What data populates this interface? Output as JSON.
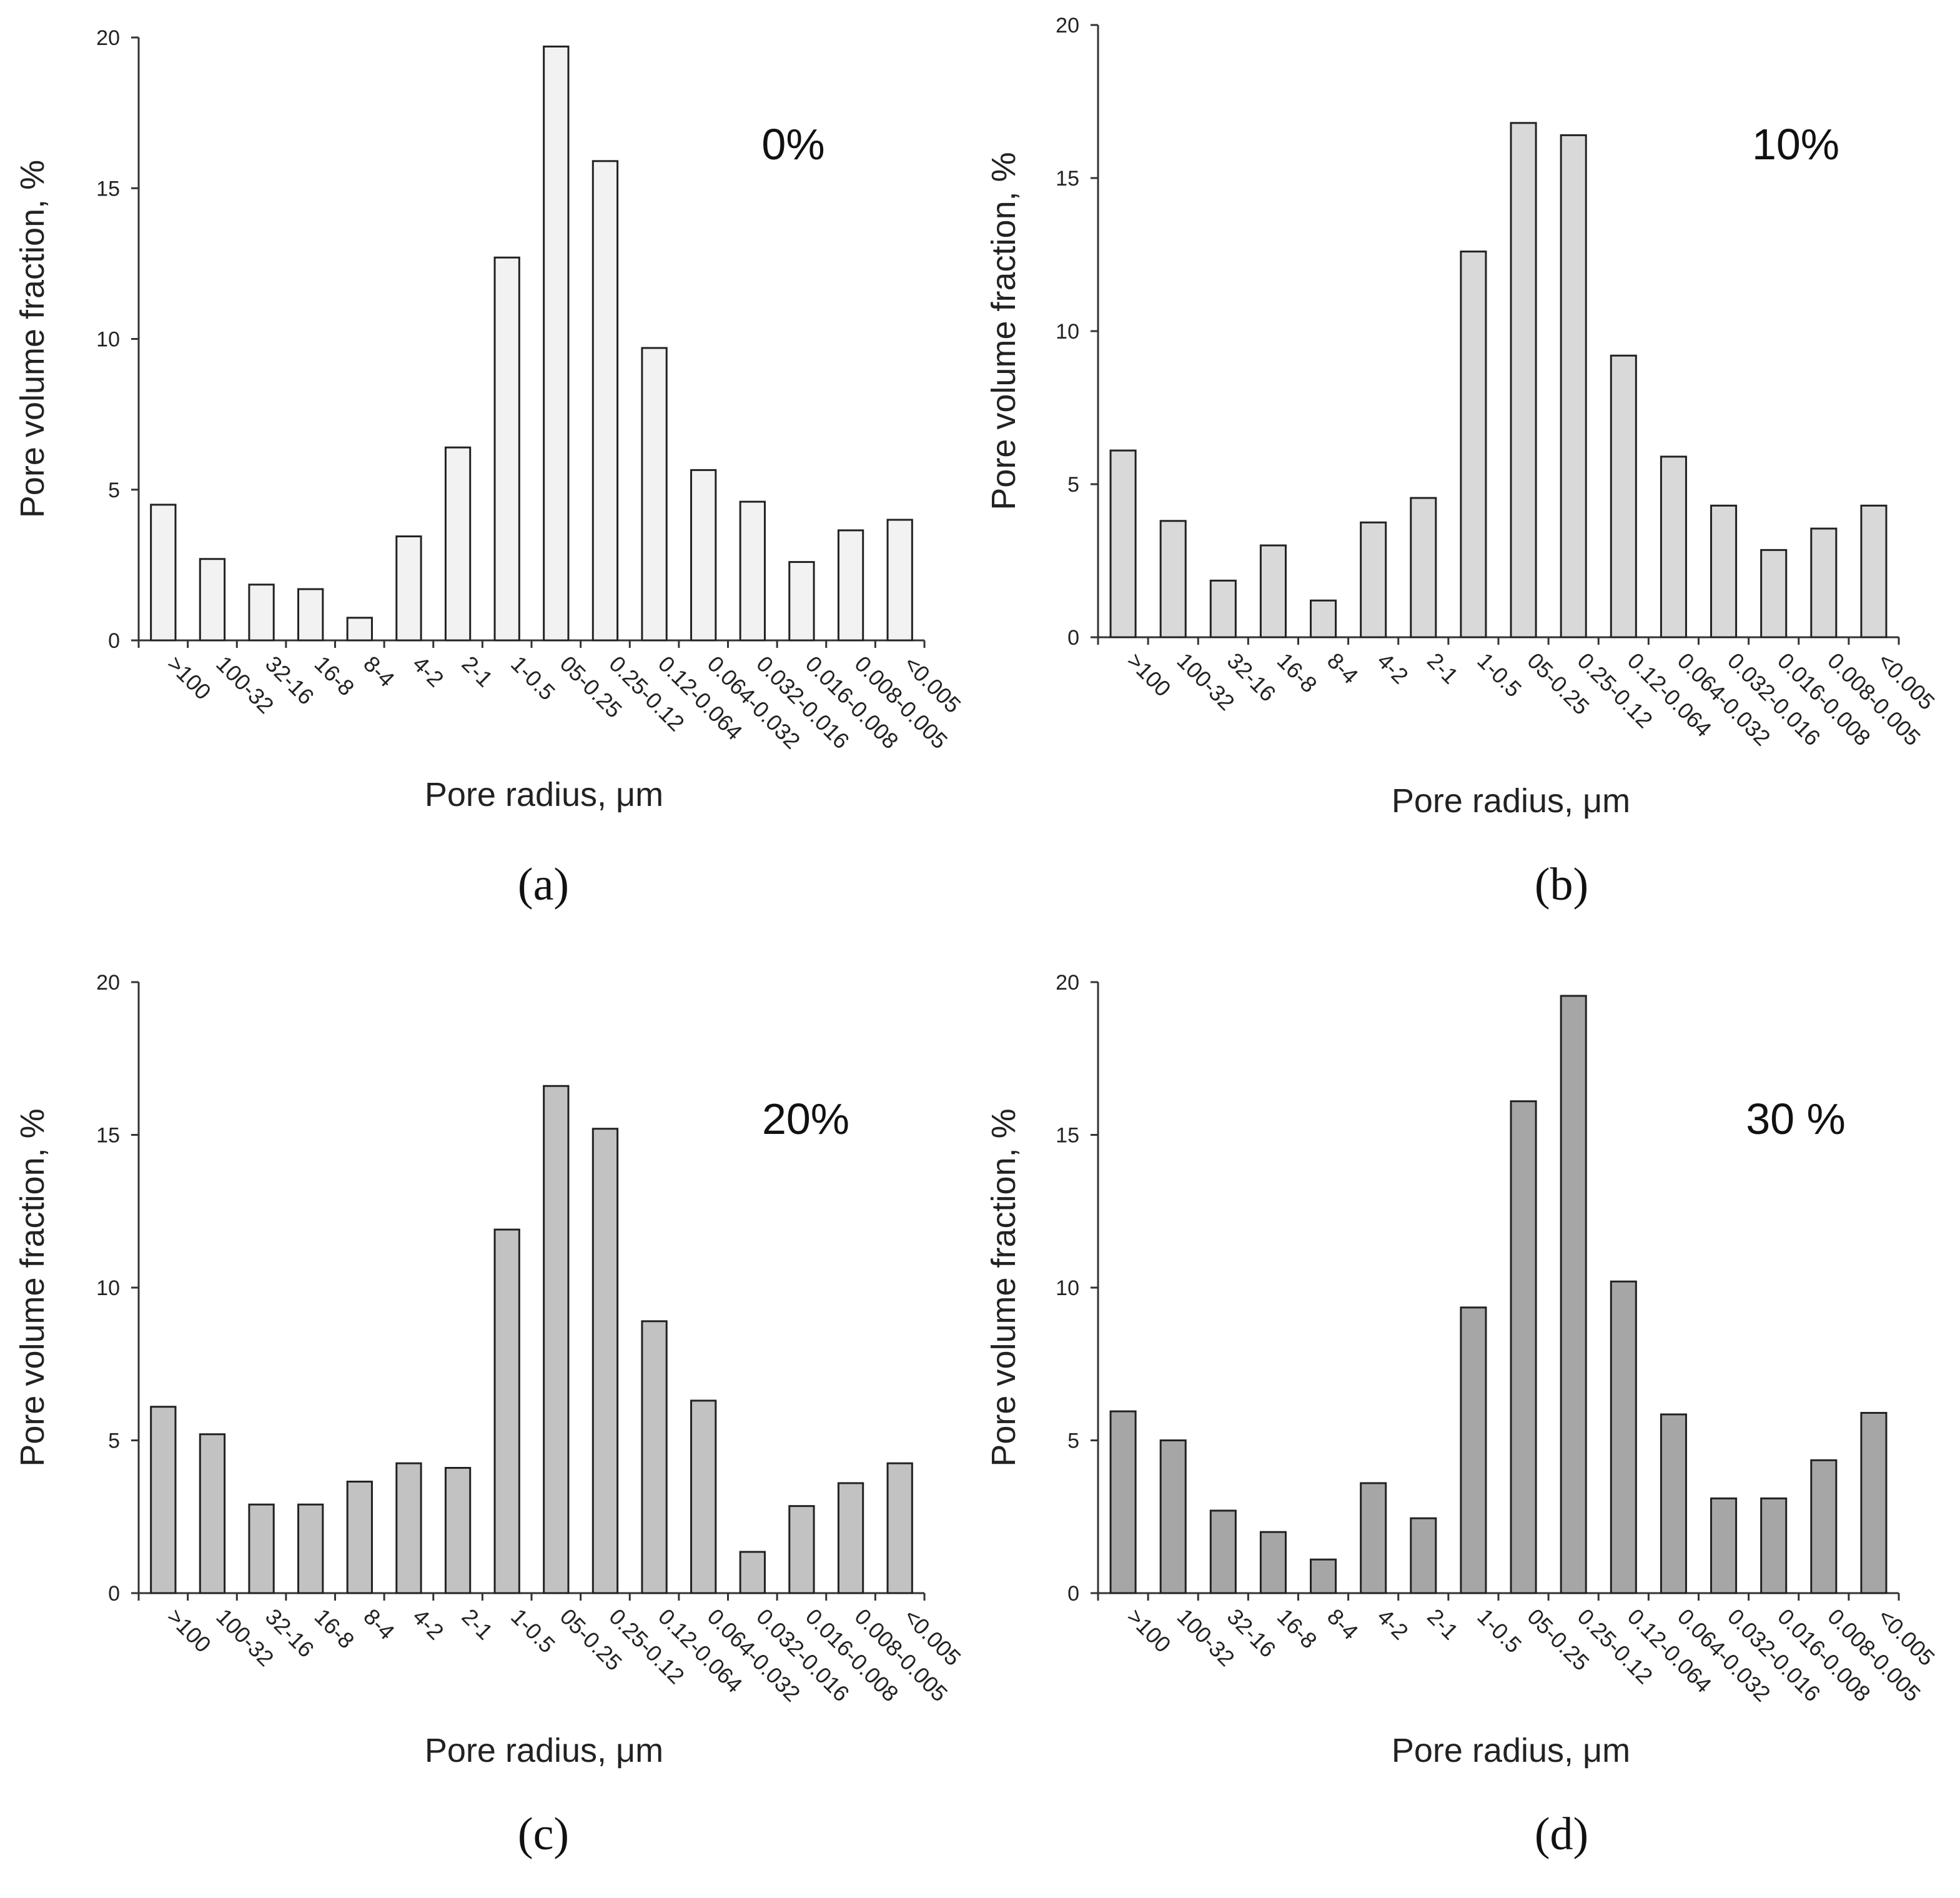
{
  "figure": {
    "colors": {
      "axis": "#333333",
      "text": "#222222",
      "bar_edge": "#222222"
    }
  },
  "chart_data": [
    {
      "type": "bar",
      "panel": "a",
      "caption": "(a)",
      "title": "0%",
      "xlabel": "Pore radius, μm",
      "ylabel": "Pore volume fraction, %",
      "ylim": [
        0,
        20
      ],
      "yticks": [
        "0",
        "5",
        "10",
        "15",
        "20"
      ],
      "bar_color": "#f2f2f2",
      "categories": [
        ">100",
        "100-32",
        "32-16",
        "16-8",
        "8-4",
        "4-2",
        "2-1",
        "1-0.5",
        "05-0.25",
        "0.25-0.12",
        "0.12-0.064",
        "0.064-0.032",
        "0.032-0.016",
        "0.016-0.008",
        "0.008-0.005",
        "<0.005"
      ],
      "values": [
        4.5,
        2.7,
        1.85,
        1.7,
        0.75,
        3.45,
        6.4,
        12.7,
        19.7,
        15.9,
        9.7,
        5.65,
        4.6,
        2.6,
        3.65,
        4.0
      ]
    },
    {
      "type": "bar",
      "panel": "b",
      "caption": "(b)",
      "title": "10%",
      "xlabel": "Pore radius, μm",
      "ylabel": "Pore volume fraction, %",
      "ylim": [
        0,
        20
      ],
      "yticks": [
        "0",
        "5",
        "10",
        "15",
        "20"
      ],
      "bar_color": "#d9d9d9",
      "categories": [
        ">100",
        "100-32",
        "32-16",
        "16-8",
        "8-4",
        "4-2",
        "2-1",
        "1-0.5",
        "05-0.25",
        "0.25-0.12",
        "0.12-0.064",
        "0.064-0.032",
        "0.032-0.016",
        "0.016-0.008",
        "0.008-0.005",
        "<0.005"
      ],
      "values": [
        6.1,
        3.8,
        1.85,
        3.0,
        1.2,
        3.75,
        4.55,
        12.6,
        16.8,
        16.4,
        9.2,
        5.9,
        4.3,
        2.85,
        3.55,
        4.3
      ]
    },
    {
      "type": "bar",
      "panel": "c",
      "caption": "(c)",
      "title": "20%",
      "xlabel": "Pore radius, μm",
      "ylabel": "Pore volume fraction, %",
      "ylim": [
        0,
        20
      ],
      "yticks": [
        "0",
        "5",
        "10",
        "15",
        "20"
      ],
      "bar_color": "#c2c2c2",
      "categories": [
        ">100",
        "100-32",
        "32-16",
        "16-8",
        "8-4",
        "4-2",
        "2-1",
        "1-0.5",
        "05-0.25",
        "0.25-0.12",
        "0.12-0.064",
        "0.064-0.032",
        "0.032-0.016",
        "0.016-0.008",
        "0.008-0.005",
        "<0.005"
      ],
      "values": [
        6.1,
        5.2,
        2.9,
        2.9,
        3.65,
        4.25,
        4.1,
        11.9,
        16.6,
        15.2,
        8.9,
        6.3,
        1.35,
        2.85,
        3.6,
        4.25
      ]
    },
    {
      "type": "bar",
      "panel": "d",
      "caption": "(d)",
      "title": "30 %",
      "xlabel": "Pore radius, μm",
      "ylabel": "Pore volume fraction, %",
      "ylim": [
        0,
        20
      ],
      "yticks": [
        "0",
        "5",
        "10",
        "15",
        "20"
      ],
      "bar_color": "#a6a6a6",
      "categories": [
        ">100",
        "100-32",
        "32-16",
        "16-8",
        "8-4",
        "4-2",
        "2-1",
        "1-0.5",
        "05-0.25",
        "0.25-0.12",
        "0.12-0.064",
        "0.064-0.032",
        "0.032-0.016",
        "0.016-0.008",
        "0.008-0.005",
        "<0.005"
      ],
      "values": [
        5.95,
        5.0,
        2.7,
        2.0,
        1.1,
        3.6,
        2.45,
        9.35,
        16.1,
        19.55,
        10.2,
        5.85,
        3.1,
        3.1,
        4.35,
        5.9
      ]
    }
  ]
}
